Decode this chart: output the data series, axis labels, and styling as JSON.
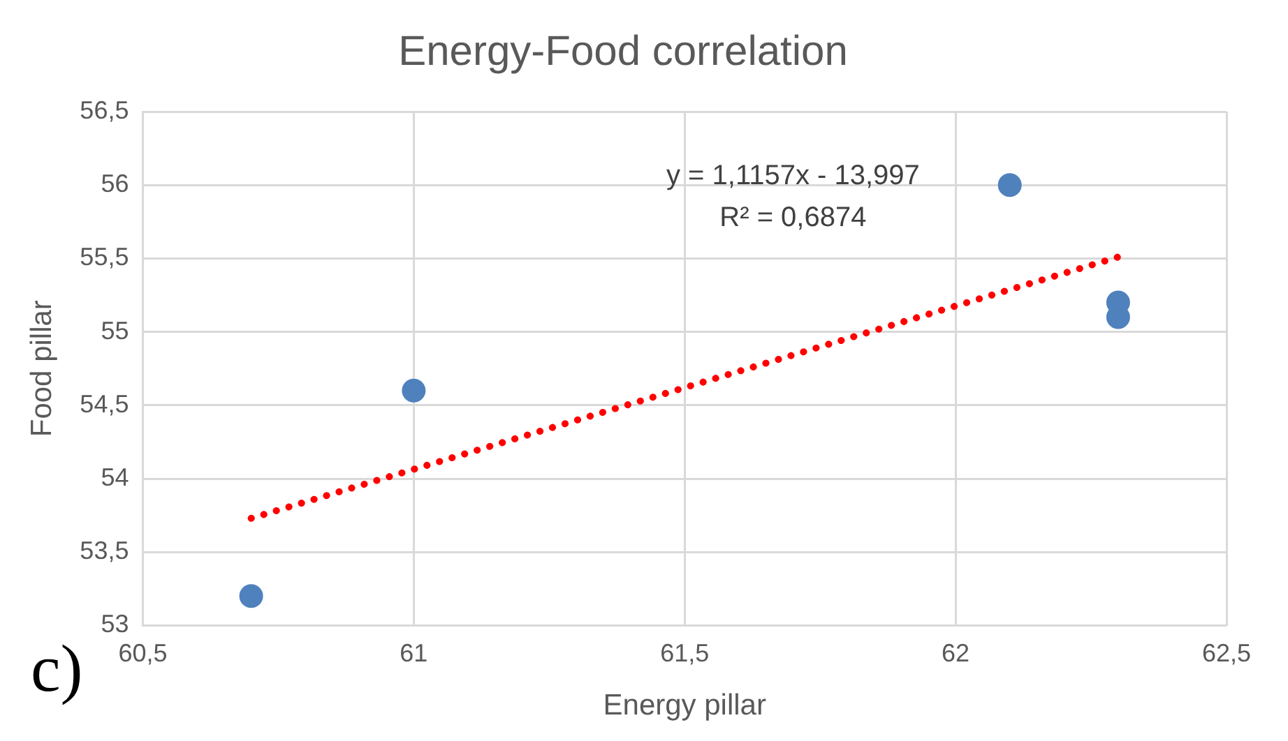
{
  "chart_data": {
    "type": "scatter",
    "title": "Energy-Food correlation",
    "xlabel": "Energy pillar",
    "ylabel": "Food pillar",
    "series": [
      {
        "color": "#4f81bd",
        "marker": "circle",
        "x": [
          60.7,
          61.0,
          62.1,
          62.3,
          62.3
        ],
        "values": [
          53.2,
          54.6,
          56.0,
          55.2,
          55.1
        ]
      },
      {
        "type": "line",
        "color": "#ff0000",
        "marker": "none",
        "line_style": "dotted",
        "x": [
          60.7,
          62.3
        ],
        "values": [
          53.73,
          55.51
        ]
      }
    ],
    "xlim": [
      60.5,
      62.5
    ],
    "xticks": [
      {
        "value": 60.5,
        "label": "60,5"
      },
      61,
      {
        "value": 61.5,
        "label": "61,5"
      },
      62,
      {
        "value": 62.5,
        "label": "62,5"
      }
    ],
    "ylim": [
      53,
      56.5
    ],
    "yticks": [
      53,
      {
        "value": 53.5,
        "label": "53,5"
      },
      54,
      {
        "value": 54.5,
        "label": "54,5"
      },
      55,
      {
        "value": 55.5,
        "label": "55,5"
      },
      56,
      {
        "value": 56.5,
        "label": "56,5"
      }
    ],
    "grid": true,
    "legend": false,
    "annotations": [
      "y = 1,1157x - 13,997",
      "R² = 0,6874",
      "c)"
    ]
  }
}
